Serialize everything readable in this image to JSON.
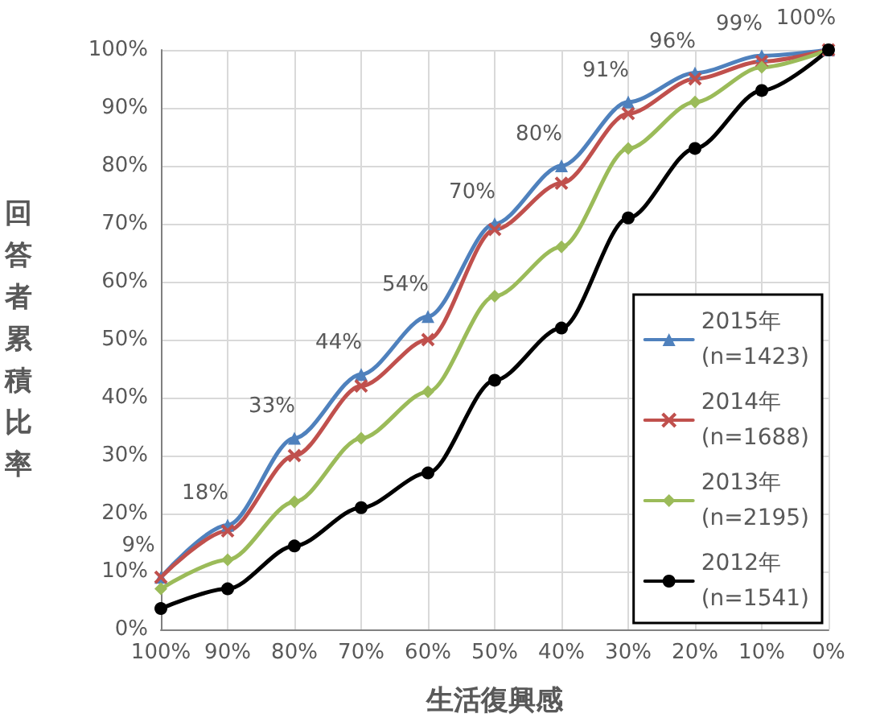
{
  "chart_data": {
    "type": "line",
    "xlabel": "生活復興感",
    "ylabel": "回答者累積比率",
    "categories": [
      "100%",
      "90%",
      "80%",
      "70%",
      "60%",
      "50%",
      "40%",
      "30%",
      "20%",
      "10%",
      "0%"
    ],
    "ylim": [
      0,
      100
    ],
    "yticks": [
      {
        "value": 0,
        "label": "0%"
      },
      {
        "value": 10,
        "label": "10%"
      },
      {
        "value": 20,
        "label": "20%"
      },
      {
        "value": 30,
        "label": "30%"
      },
      {
        "value": 40,
        "label": "40%"
      },
      {
        "value": 50,
        "label": "50%"
      },
      {
        "value": 60,
        "label": "60%"
      },
      {
        "value": 70,
        "label": "70%"
      },
      {
        "value": 80,
        "label": "80%"
      },
      {
        "value": 90,
        "label": "90%"
      },
      {
        "value": 100,
        "label": "100%"
      }
    ],
    "grid": true,
    "legend": "bottom right",
    "series": [
      {
        "name": "2015年\n(n=1423)",
        "color": "#4f81bd",
        "marker": "triangle",
        "values": [
          9,
          18,
          33,
          44,
          54,
          70,
          80,
          91,
          96,
          99,
          100
        ],
        "value_labels": [
          "9%",
          "18%",
          "33%",
          "44%",
          "54%",
          "70%",
          "80%",
          "91%",
          "96%",
          "99%",
          "100%"
        ]
      },
      {
        "name": "2014年\n(n=1688)",
        "color": "#c0504d",
        "marker": "cross",
        "values": [
          9,
          17,
          30,
          42,
          50,
          69,
          77,
          89,
          95,
          98,
          100
        ]
      },
      {
        "name": "2013年\n(n=2195)",
        "color": "#9bbb59",
        "marker": "diamond",
        "values": [
          7,
          12,
          22,
          33,
          41,
          57.5,
          66,
          83,
          91,
          97,
          100
        ]
      },
      {
        "name": "2012年\n(n=1541)",
        "color": "#000000",
        "marker": "circle",
        "values": [
          3.6,
          7,
          14.4,
          21,
          27,
          43,
          52,
          71,
          83,
          93,
          100
        ]
      }
    ]
  }
}
